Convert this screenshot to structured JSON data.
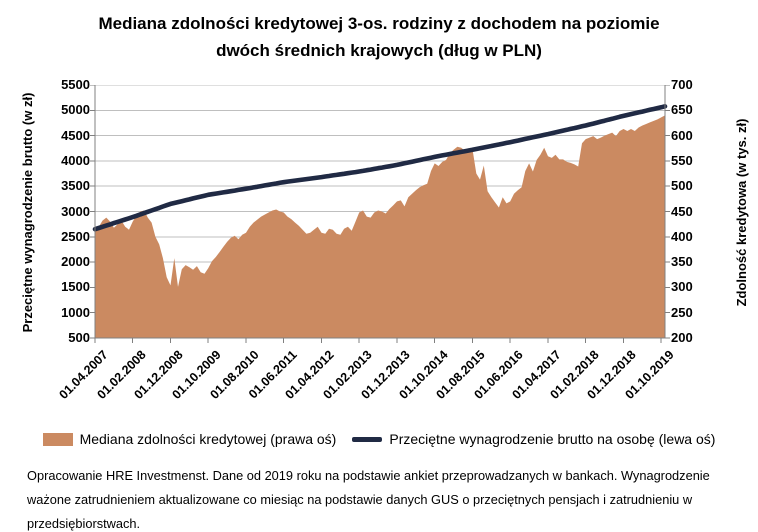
{
  "title": {
    "line1": "Mediana zdolności kredytowej 3-os. rodziny z dochodem na poziomie",
    "line2": "dwóch średnich krajowych (dług w PLN)"
  },
  "legend": [
    {
      "label": "Mediana zdolności kredytowej (prawa oś)",
      "marker": "area-swatch",
      "color": "#CB8A61"
    },
    {
      "label": "Przeciętne wynagrodzenie brutto na osobę (lewa oś)",
      "marker": "line-swatch",
      "color": "#202A44"
    }
  ],
  "footer": "Opracowanie HRE Investmenst. Dane od 2019 roku na podstawie ankiet przeprowadzanych w bankach. Wynagrodzenie ważone zatrudnieniem aktualizowane co miesiąc na podstawie danych GUS o przeciętnych pensjach i zatrudnieniu w przedsiębiorstwach.",
  "chart_data": {
    "type": "area",
    "note": "monthly data 2007-04 .. 2019-11, x tick every 10 months",
    "x_tick_labels": [
      "01.04.2007",
      "01.02.2008",
      "01.12.2008",
      "01.10.2009",
      "01.08.2010",
      "01.06.2011",
      "01.04.2012",
      "01.02.2013",
      "01.12.2013",
      "01.10.2014",
      "01.08.2015",
      "01.06.2016",
      "01.04.2017",
      "01.02.2018",
      "01.12.2018",
      "01.10.2019"
    ],
    "x_tick_step_months": 10,
    "left_axis": {
      "label": "Przeciętne wynagrodzenie brutto (w zł)",
      "range": [
        500,
        5500
      ],
      "step": 500
    },
    "right_axis": {
      "label": "Zdolność kredytowa (w tys. zł)",
      "range": [
        200,
        700
      ],
      "step": 50
    },
    "grid": true,
    "legend_position": "bottom",
    "series": [
      {
        "name": "Mediana zdolności kredytowej (prawa oś)",
        "axis": "right",
        "type": "area",
        "color": "#CB8A61",
        "values": [
          412,
          420,
          432,
          438,
          430,
          418,
          425,
          432,
          420,
          414,
          430,
          442,
          450,
          452,
          438,
          428,
          400,
          385,
          358,
          320,
          304,
          358,
          301,
          336,
          344,
          340,
          335,
          342,
          330,
          327,
          338,
          352,
          360,
          370,
          380,
          390,
          398,
          402,
          395,
          404,
          408,
          420,
          428,
          434,
          440,
          444,
          448,
          452,
          454,
          450,
          448,
          440,
          435,
          428,
          422,
          414,
          406,
          408,
          414,
          420,
          408,
          406,
          416,
          414,
          406,
          404,
          416,
          420,
          412,
          430,
          448,
          452,
          440,
          438,
          448,
          452,
          450,
          446,
          455,
          462,
          470,
          472,
          460,
          478,
          485,
          492,
          498,
          502,
          505,
          530,
          545,
          540,
          548,
          552,
          565,
          572,
          578,
          576,
          570,
          575,
          573,
          525,
          513,
          541,
          490,
          478,
          468,
          458,
          478,
          466,
          470,
          485,
          492,
          498,
          530,
          545,
          529,
          552,
          562,
          576,
          559,
          556,
          562,
          553,
          553,
          548,
          546,
          543,
          539,
          585,
          593,
          596,
          599,
          593,
          596,
          600,
          603,
          606,
          599,
          609,
          613,
          609,
          613,
          609,
          616,
          620,
          623,
          626,
          629,
          632,
          636,
          640
        ]
      },
      {
        "name": "Przeciętne wynagrodzenie brutto na osobę (lewa oś)",
        "axis": "left",
        "type": "line",
        "color": "#202A44",
        "values": [
          2650,
          2674,
          2698,
          2722,
          2746,
          2770,
          2794,
          2818,
          2842,
          2866,
          2890,
          2916,
          2942,
          2968,
          2994,
          3020,
          3046,
          3072,
          3098,
          3124,
          3150,
          3168,
          3186,
          3204,
          3222,
          3240,
          3258,
          3276,
          3294,
          3312,
          3330,
          3342,
          3354,
          3366,
          3378,
          3390,
          3402,
          3414,
          3426,
          3438,
          3450,
          3463,
          3476,
          3489,
          3502,
          3515,
          3528,
          3541,
          3554,
          3567,
          3580,
          3590,
          3600,
          3610,
          3620,
          3630,
          3640,
          3650,
          3660,
          3670,
          3680,
          3691,
          3702,
          3713,
          3724,
          3735,
          3746,
          3757,
          3768,
          3779,
          3790,
          3803,
          3816,
          3829,
          3842,
          3855,
          3868,
          3881,
          3894,
          3907,
          3920,
          3936,
          3952,
          3968,
          3984,
          4000,
          4016,
          4032,
          4048,
          4064,
          4080,
          4094,
          4108,
          4122,
          4136,
          4150,
          4164,
          4178,
          4192,
          4206,
          4220,
          4235,
          4250,
          4265,
          4280,
          4295,
          4310,
          4325,
          4340,
          4355,
          4370,
          4386,
          4402,
          4418,
          4434,
          4450,
          4466,
          4482,
          4498,
          4514,
          4530,
          4547,
          4564,
          4581,
          4598,
          4615,
          4632,
          4649,
          4666,
          4683,
          4700,
          4719,
          4738,
          4757,
          4776,
          4795,
          4814,
          4833,
          4852,
          4871,
          4890,
          4907,
          4924,
          4941,
          4958,
          4975,
          4992,
          5009,
          5026,
          5043,
          5060,
          5080
        ]
      }
    ]
  }
}
